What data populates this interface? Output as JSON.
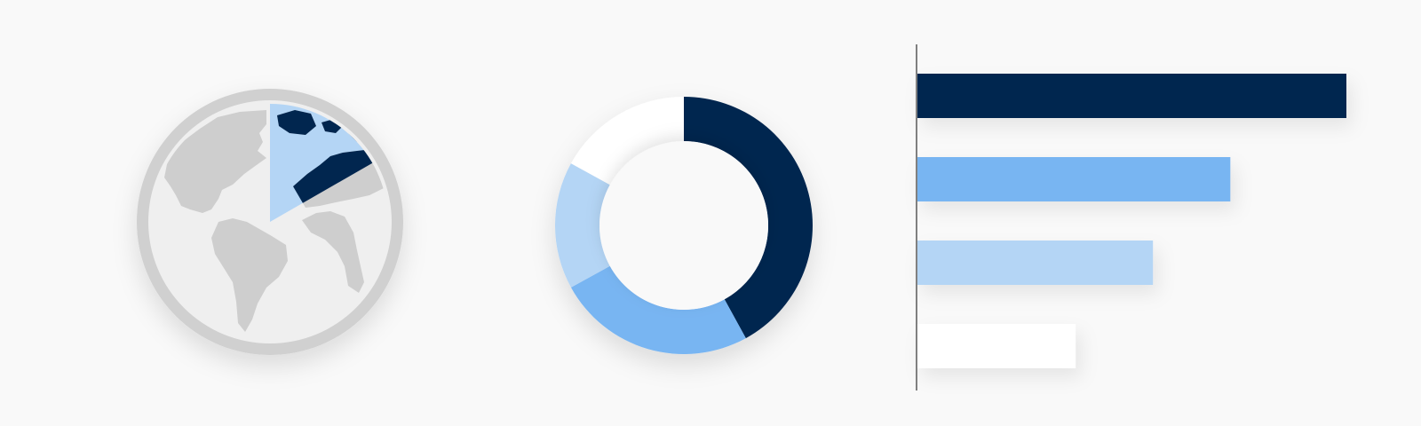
{
  "colors": {
    "background": "#f9f9f9",
    "navy": "#01264f",
    "blue": "#78b5f2",
    "light_blue": "#b4d5f5",
    "white": "#ffffff",
    "globe_ring": "#d0d0d0",
    "globe_face": "#efefef",
    "land": "#cecece",
    "axis": "#808080"
  },
  "icons": {
    "globe": "world-globe-icon"
  },
  "chart_data": [
    {
      "type": "pie",
      "title": "",
      "values": [
        0.167,
        0.833
      ],
      "highlight_index": 0,
      "colors": [
        "navy",
        "globe_face"
      ],
      "inner_highlight_color": "light_blue",
      "background": "world-globe"
    },
    {
      "type": "pie",
      "title": "",
      "donut": true,
      "values": [
        42,
        25,
        16,
        17
      ],
      "colors": [
        "navy",
        "blue",
        "light_blue",
        "white"
      ]
    },
    {
      "type": "bar",
      "orientation": "horizontal",
      "title": "",
      "xlabel": "",
      "ylabel": "",
      "values": [
        100,
        73,
        55,
        37
      ],
      "colors": [
        "navy",
        "blue",
        "light_blue",
        "white"
      ],
      "xlim": [
        0,
        100
      ],
      "grid": false
    }
  ]
}
